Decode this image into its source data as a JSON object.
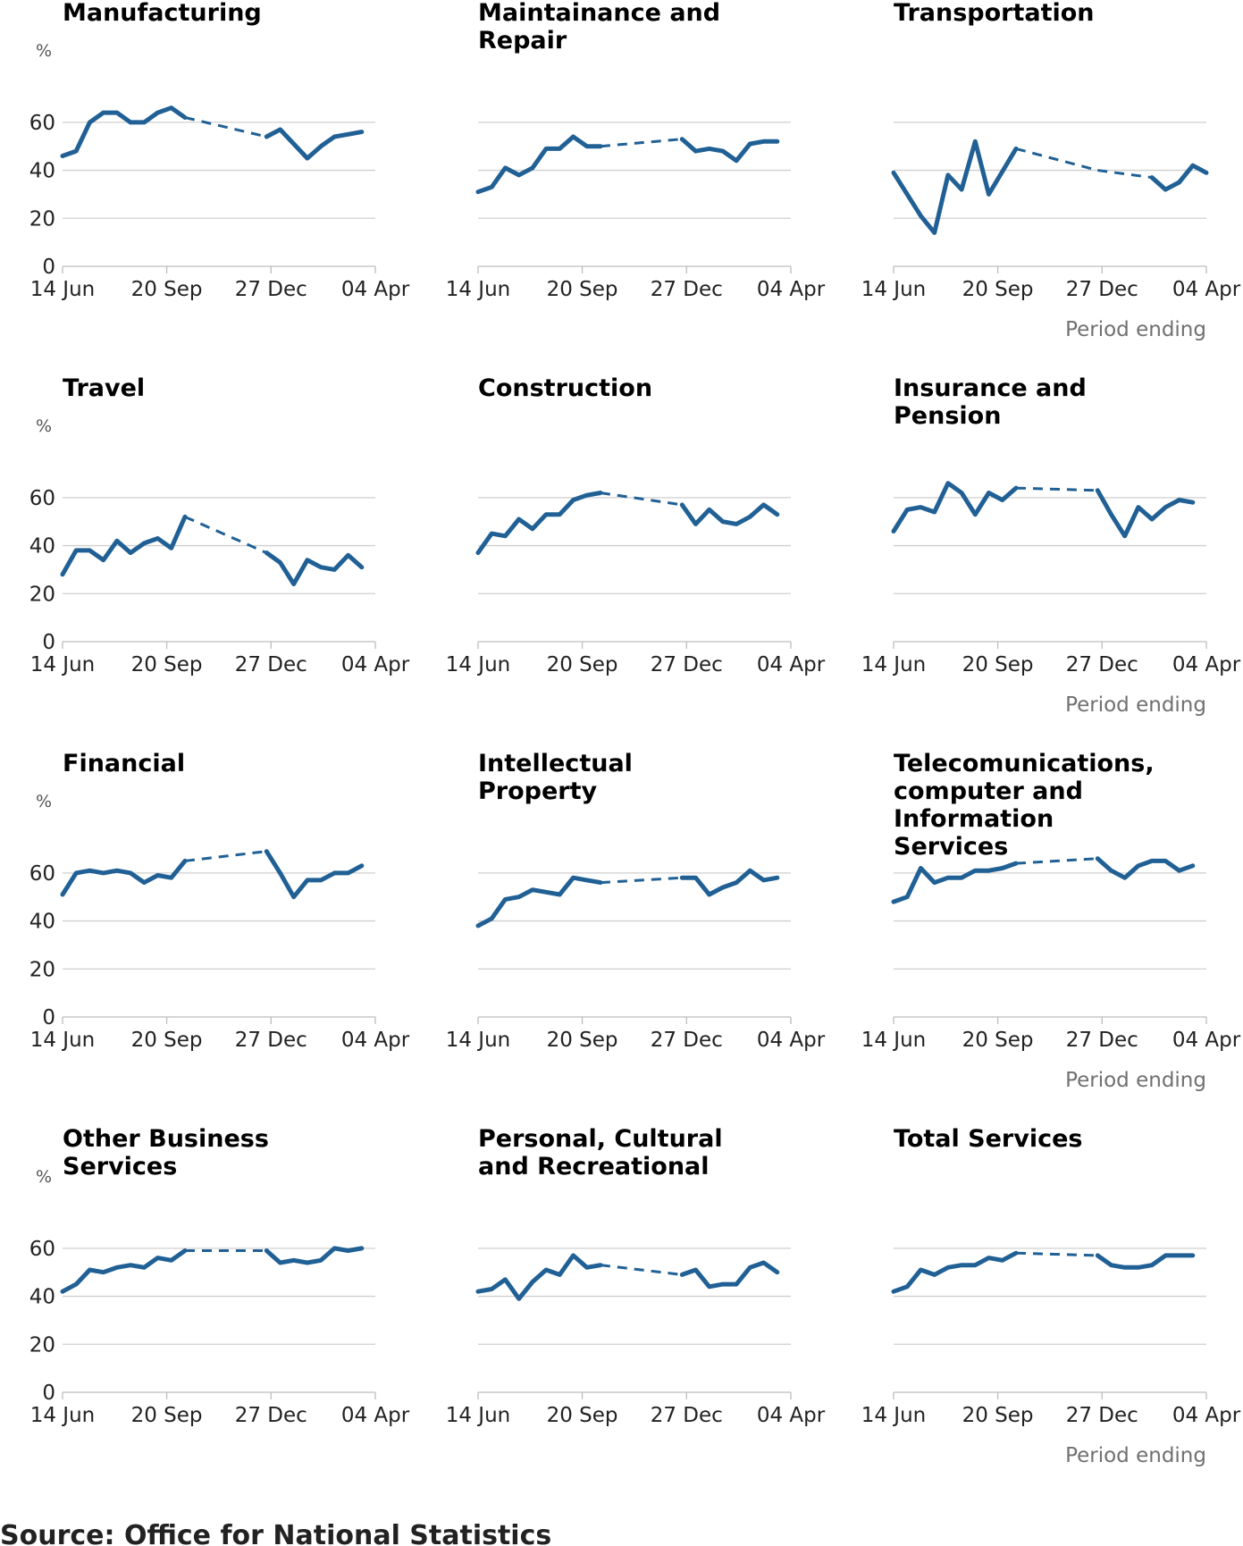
{
  "source": "Source: Office for National Statistics",
  "colors": {
    "series": "#206095",
    "grid": "#cfcfcf",
    "axis": "#bdbdbd"
  },
  "chart_data": [
    {
      "type": "line",
      "title": "Manufacturing",
      "unit": "%",
      "xlabel": "",
      "ylim": [
        0,
        70
      ],
      "yticks": [
        0,
        20,
        40,
        60
      ],
      "xtick_labels": [
        "14 Jun",
        "20 Sep",
        "27 Dec",
        "04 Apr"
      ],
      "series": [
        {
          "values": [
            [
              0,
              46
            ],
            [
              1,
              48
            ],
            [
              2,
              60
            ],
            [
              3,
              64
            ],
            [
              4,
              64
            ],
            [
              5,
              60
            ],
            [
              6,
              60
            ],
            [
              7,
              64
            ],
            [
              8,
              66
            ],
            [
              9,
              62
            ],
            [
              15,
              54
            ],
            [
              16,
              57
            ],
            [
              17,
              51
            ],
            [
              18,
              45
            ],
            [
              19,
              50
            ],
            [
              20,
              54
            ],
            [
              21,
              55
            ],
            [
              22,
              56
            ]
          ]
        }
      ]
    },
    {
      "type": "line",
      "title": "Maintainance and Repair",
      "unit": "",
      "xlabel": "",
      "ylim": [
        0,
        70
      ],
      "yticks": [
        0,
        20,
        40,
        60
      ],
      "xtick_labels": [
        "14 Jun",
        "20 Sep",
        "27 Dec",
        "04 Apr"
      ],
      "series": [
        {
          "values": [
            [
              0,
              31
            ],
            [
              1,
              33
            ],
            [
              2,
              41
            ],
            [
              3,
              38
            ],
            [
              4,
              41
            ],
            [
              5,
              49
            ],
            [
              6,
              49
            ],
            [
              7,
              54
            ],
            [
              8,
              50
            ],
            [
              9,
              50
            ],
            [
              15,
              53
            ],
            [
              16,
              48
            ],
            [
              17,
              49
            ],
            [
              18,
              48
            ],
            [
              19,
              44
            ],
            [
              20,
              51
            ],
            [
              21,
              52
            ],
            [
              22,
              52
            ]
          ]
        }
      ]
    },
    {
      "type": "line",
      "title": "Transportation",
      "unit": "",
      "xlabel": "Period ending",
      "ylim": [
        0,
        70
      ],
      "yticks": [
        0,
        20,
        40,
        60
      ],
      "xtick_labels": [
        "14 Jun",
        "20 Sep",
        "27 Dec",
        "04 Apr"
      ],
      "series": [
        {
          "values": [
            [
              0,
              39
            ],
            [
              2,
              21
            ],
            [
              3,
              14
            ],
            [
              4,
              38
            ],
            [
              5,
              32
            ],
            [
              6,
              52
            ],
            [
              7,
              30
            ],
            [
              9,
              49
            ],
            [
              15,
              40
            ],
            [
              19,
              37
            ],
            [
              20,
              32
            ],
            [
              21,
              35
            ],
            [
              22,
              42
            ],
            [
              23,
              39
            ]
          ]
        }
      ]
    },
    {
      "type": "line",
      "title": "Travel",
      "unit": "%",
      "xlabel": "",
      "ylim": [
        0,
        70
      ],
      "yticks": [
        0,
        20,
        40,
        60
      ],
      "xtick_labels": [
        "14 Jun",
        "20 Sep",
        "27 Dec",
        "04 Apr"
      ],
      "series": [
        {
          "values": [
            [
              0,
              28
            ],
            [
              1,
              38
            ],
            [
              2,
              38
            ],
            [
              3,
              34
            ],
            [
              4,
              42
            ],
            [
              5,
              37
            ],
            [
              6,
              41
            ],
            [
              7,
              43
            ],
            [
              8,
              39
            ],
            [
              9,
              52
            ],
            [
              15,
              37
            ],
            [
              16,
              33
            ],
            [
              17,
              24
            ],
            [
              18,
              34
            ],
            [
              19,
              31
            ],
            [
              20,
              30
            ],
            [
              21,
              36
            ],
            [
              22,
              31
            ]
          ]
        }
      ]
    },
    {
      "type": "line",
      "title": "Construction",
      "unit": "",
      "xlabel": "",
      "ylim": [
        0,
        70
      ],
      "yticks": [
        0,
        20,
        40,
        60
      ],
      "xtick_labels": [
        "14 Jun",
        "20 Sep",
        "27 Dec",
        "04 Apr"
      ],
      "series": [
        {
          "values": [
            [
              0,
              37
            ],
            [
              1,
              45
            ],
            [
              2,
              44
            ],
            [
              3,
              51
            ],
            [
              4,
              47
            ],
            [
              5,
              53
            ],
            [
              6,
              53
            ],
            [
              7,
              59
            ],
            [
              8,
              61
            ],
            [
              9,
              62
            ],
            [
              15,
              57
            ],
            [
              16,
              49
            ],
            [
              17,
              55
            ],
            [
              18,
              50
            ],
            [
              19,
              49
            ],
            [
              20,
              52
            ],
            [
              21,
              57
            ],
            [
              22,
              53
            ]
          ]
        }
      ]
    },
    {
      "type": "line",
      "title": "Insurance and Pension",
      "unit": "",
      "xlabel": "Period ending",
      "ylim": [
        0,
        70
      ],
      "yticks": [
        0,
        20,
        40,
        60
      ],
      "xtick_labels": [
        "14 Jun",
        "20 Sep",
        "27 Dec",
        "04 Apr"
      ],
      "series": [
        {
          "values": [
            [
              0,
              46
            ],
            [
              1,
              55
            ],
            [
              2,
              56
            ],
            [
              3,
              54
            ],
            [
              4,
              66
            ],
            [
              5,
              62
            ],
            [
              6,
              53
            ],
            [
              7,
              62
            ],
            [
              8,
              59
            ],
            [
              9,
              64
            ],
            [
              15,
              63
            ],
            [
              16,
              53
            ],
            [
              17,
              44
            ],
            [
              18,
              56
            ],
            [
              19,
              51
            ],
            [
              20,
              56
            ],
            [
              21,
              59
            ],
            [
              22,
              58
            ]
          ]
        }
      ]
    },
    {
      "type": "line",
      "title": "Financial",
      "unit": "%",
      "xlabel": "",
      "ylim": [
        0,
        70
      ],
      "yticks": [
        0,
        20,
        40,
        60
      ],
      "xtick_labels": [
        "14 Jun",
        "20 Sep",
        "27 Dec",
        "04 Apr"
      ],
      "series": [
        {
          "values": [
            [
              0,
              51
            ],
            [
              1,
              60
            ],
            [
              2,
              61
            ],
            [
              3,
              60
            ],
            [
              4,
              61
            ],
            [
              5,
              60
            ],
            [
              6,
              56
            ],
            [
              7,
              59
            ],
            [
              8,
              58
            ],
            [
              9,
              65
            ],
            [
              15,
              69
            ],
            [
              16,
              60
            ],
            [
              17,
              50
            ],
            [
              18,
              57
            ],
            [
              19,
              57
            ],
            [
              20,
              60
            ],
            [
              21,
              60
            ],
            [
              22,
              63
            ]
          ]
        }
      ]
    },
    {
      "type": "line",
      "title": "Intellectual Property",
      "unit": "",
      "xlabel": "",
      "ylim": [
        0,
        70
      ],
      "yticks": [
        0,
        20,
        40,
        60
      ],
      "xtick_labels": [
        "14 Jun",
        "20 Sep",
        "27 Dec",
        "04 Apr"
      ],
      "series": [
        {
          "values": [
            [
              0,
              38
            ],
            [
              1,
              41
            ],
            [
              2,
              49
            ],
            [
              3,
              50
            ],
            [
              4,
              53
            ],
            [
              5,
              52
            ],
            [
              6,
              51
            ],
            [
              7,
              58
            ],
            [
              8,
              57
            ],
            [
              9,
              56
            ],
            [
              15,
              58
            ],
            [
              16,
              58
            ],
            [
              17,
              51
            ],
            [
              18,
              54
            ],
            [
              19,
              56
            ],
            [
              20,
              61
            ],
            [
              21,
              57
            ],
            [
              22,
              58
            ]
          ]
        }
      ]
    },
    {
      "type": "line",
      "title": "Telecomunications, computer and Information Services",
      "unit": "",
      "xlabel": "Period ending",
      "ylim": [
        0,
        70
      ],
      "yticks": [
        0,
        20,
        40,
        60
      ],
      "xtick_labels": [
        "14 Jun",
        "20 Sep",
        "27 Dec",
        "04 Apr"
      ],
      "series": [
        {
          "values": [
            [
              0,
              48
            ],
            [
              1,
              50
            ],
            [
              2,
              62
            ],
            [
              3,
              56
            ],
            [
              4,
              58
            ],
            [
              5,
              58
            ],
            [
              6,
              61
            ],
            [
              7,
              61
            ],
            [
              8,
              62
            ],
            [
              9,
              64
            ],
            [
              15,
              66
            ],
            [
              16,
              61
            ],
            [
              17,
              58
            ],
            [
              18,
              63
            ],
            [
              19,
              65
            ],
            [
              20,
              65
            ],
            [
              21,
              61
            ],
            [
              22,
              63
            ]
          ]
        }
      ]
    },
    {
      "type": "line",
      "title": "Other Business Services",
      "unit": "%",
      "xlabel": "",
      "ylim": [
        0,
        70
      ],
      "yticks": [
        0,
        20,
        40,
        60
      ],
      "xtick_labels": [
        "14 Jun",
        "20 Sep",
        "27 Dec",
        "04 Apr"
      ],
      "series": [
        {
          "values": [
            [
              0,
              42
            ],
            [
              1,
              45
            ],
            [
              2,
              51
            ],
            [
              3,
              50
            ],
            [
              4,
              52
            ],
            [
              5,
              53
            ],
            [
              6,
              52
            ],
            [
              7,
              56
            ],
            [
              8,
              55
            ],
            [
              9,
              59
            ],
            [
              15,
              59
            ],
            [
              16,
              54
            ],
            [
              17,
              55
            ],
            [
              18,
              54
            ],
            [
              19,
              55
            ],
            [
              20,
              60
            ],
            [
              21,
              59
            ],
            [
              22,
              60
            ]
          ]
        }
      ]
    },
    {
      "type": "line",
      "title": "Personal, Cultural and Recreational",
      "unit": "",
      "xlabel": "",
      "ylim": [
        0,
        70
      ],
      "yticks": [
        0,
        20,
        40,
        60
      ],
      "xtick_labels": [
        "14 Jun",
        "20 Sep",
        "27 Dec",
        "04 Apr"
      ],
      "series": [
        {
          "values": [
            [
              0,
              42
            ],
            [
              1,
              43
            ],
            [
              2,
              47
            ],
            [
              3,
              39
            ],
            [
              4,
              46
            ],
            [
              5,
              51
            ],
            [
              6,
              49
            ],
            [
              7,
              57
            ],
            [
              8,
              52
            ],
            [
              9,
              53
            ],
            [
              15,
              49
            ],
            [
              16,
              51
            ],
            [
              17,
              44
            ],
            [
              18,
              45
            ],
            [
              19,
              45
            ],
            [
              20,
              52
            ],
            [
              21,
              54
            ],
            [
              22,
              50
            ]
          ]
        }
      ]
    },
    {
      "type": "line",
      "title": "Total Services",
      "unit": "",
      "xlabel": "Period ending",
      "ylim": [
        0,
        70
      ],
      "yticks": [
        0,
        20,
        40,
        60
      ],
      "xtick_labels": [
        "14 Jun",
        "20 Sep",
        "27 Dec",
        "04 Apr"
      ],
      "series": [
        {
          "values": [
            [
              0,
              42
            ],
            [
              1,
              44
            ],
            [
              2,
              51
            ],
            [
              3,
              49
            ],
            [
              4,
              52
            ],
            [
              5,
              53
            ],
            [
              6,
              53
            ],
            [
              7,
              56
            ],
            [
              8,
              55
            ],
            [
              9,
              58
            ],
            [
              15,
              57
            ],
            [
              16,
              53
            ],
            [
              17,
              52
            ],
            [
              18,
              52
            ],
            [
              19,
              53
            ],
            [
              20,
              57
            ],
            [
              21,
              57
            ],
            [
              22,
              57
            ]
          ]
        }
      ]
    }
  ]
}
